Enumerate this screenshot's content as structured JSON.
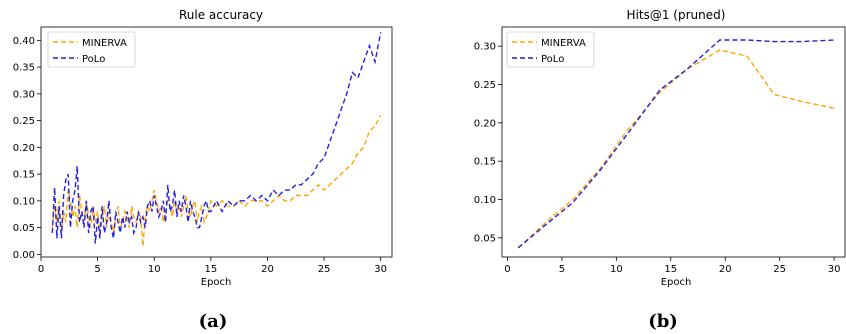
{
  "chart_data": [
    {
      "type": "line",
      "title": "Rule accuracy",
      "xlabel": "Epoch",
      "ylabel": "",
      "xlim": [
        0,
        31
      ],
      "ylim": [
        -0.005,
        0.425
      ],
      "xticks": [
        "0",
        "5",
        "10",
        "15",
        "20",
        "25",
        "30"
      ],
      "yticks": [
        "0.00",
        "0.05",
        "0.10",
        "0.15",
        "0.20",
        "0.25",
        "0.30",
        "0.35",
        "0.40"
      ],
      "legend_position": "top-left",
      "grid": false,
      "caption": "(a)",
      "series": [
        {
          "name": "MINERVA",
          "color": "#FFA500",
          "style": "dashed",
          "x": [
            1,
            1.2,
            1.4,
            1.6,
            1.8,
            2,
            2.2,
            2.4,
            2.6,
            2.8,
            3,
            3.2,
            3.4,
            3.6,
            3.8,
            4,
            4.2,
            4.4,
            4.6,
            4.8,
            5,
            5.2,
            5.4,
            5.6,
            5.8,
            6,
            6.2,
            6.4,
            6.6,
            6.8,
            7,
            7.2,
            7.4,
            7.6,
            7.8,
            8,
            8.2,
            8.4,
            8.6,
            8.8,
            9,
            9.2,
            9.4,
            9.6,
            9.8,
            10,
            10.2,
            10.4,
            10.6,
            10.8,
            11,
            11.2,
            11.4,
            11.6,
            11.8,
            12,
            12.2,
            12.4,
            12.6,
            12.8,
            13,
            13.2,
            13.4,
            13.6,
            13.8,
            14,
            14.2,
            14.4,
            14.6,
            14.8,
            15,
            15.5,
            16,
            16.5,
            17,
            17.5,
            18,
            18.5,
            19,
            19.5,
            20,
            20.5,
            21,
            21.5,
            22,
            22.5,
            23,
            23.5,
            24,
            24.5,
            25,
            25.5,
            26,
            26.5,
            27,
            27.5,
            28,
            28.5,
            29,
            29.5,
            30
          ],
          "values": [
            0.05,
            0.09,
            0.06,
            0.1,
            0.04,
            0.08,
            0.06,
            0.12,
            0.1,
            0.07,
            0.09,
            0.05,
            0.11,
            0.08,
            0.06,
            0.1,
            0.07,
            0.05,
            0.09,
            0.06,
            0.08,
            0.04,
            0.07,
            0.09,
            0.05,
            0.08,
            0.06,
            0.04,
            0.07,
            0.09,
            0.05,
            0.06,
            0.08,
            0.07,
            0.05,
            0.09,
            0.07,
            0.06,
            0.08,
            0.07,
            0.015,
            0.07,
            0.09,
            0.08,
            0.1,
            0.12,
            0.1,
            0.08,
            0.09,
            0.06,
            0.08,
            0.1,
            0.09,
            0.07,
            0.1,
            0.08,
            0.09,
            0.07,
            0.09,
            0.11,
            0.08,
            0.07,
            0.09,
            0.1,
            0.06,
            0.08,
            0.09,
            0.06,
            0.07,
            0.08,
            0.1,
            0.09,
            0.1,
            0.09,
            0.09,
            0.1,
            0.09,
            0.1,
            0.1,
            0.1,
            0.09,
            0.1,
            0.11,
            0.1,
            0.1,
            0.11,
            0.11,
            0.11,
            0.12,
            0.13,
            0.12,
            0.13,
            0.14,
            0.15,
            0.16,
            0.17,
            0.19,
            0.2,
            0.23,
            0.24,
            0.26
          ]
        },
        {
          "name": "PoLo",
          "color": "#2020DD",
          "style": "dashed",
          "x": [
            1,
            1.2,
            1.4,
            1.6,
            1.8,
            2,
            2.2,
            2.4,
            2.6,
            2.8,
            3,
            3.2,
            3.4,
            3.6,
            3.8,
            4,
            4.2,
            4.4,
            4.6,
            4.8,
            5,
            5.2,
            5.4,
            5.6,
            5.8,
            6,
            6.2,
            6.4,
            6.6,
            6.8,
            7,
            7.2,
            7.4,
            7.6,
            7.8,
            8,
            8.2,
            8.4,
            8.6,
            8.8,
            9,
            9.2,
            9.4,
            9.6,
            9.8,
            10,
            10.2,
            10.4,
            10.6,
            10.8,
            11,
            11.2,
            11.4,
            11.6,
            11.8,
            12,
            12.2,
            12.4,
            12.6,
            12.8,
            13,
            13.2,
            13.4,
            13.6,
            13.8,
            14,
            14.2,
            14.4,
            14.6,
            14.8,
            15,
            15.5,
            16,
            16.5,
            17,
            17.5,
            18,
            18.5,
            19,
            19.5,
            20,
            20.5,
            21,
            21.5,
            22,
            22.5,
            23,
            23.5,
            24,
            24.5,
            25,
            25.5,
            26,
            26.5,
            27,
            27.5,
            28,
            28.5,
            29,
            29.5,
            30
          ],
          "values": [
            0.04,
            0.125,
            0.03,
            0.09,
            0.03,
            0.11,
            0.14,
            0.15,
            0.05,
            0.1,
            0.12,
            0.165,
            0.06,
            0.08,
            0.05,
            0.1,
            0.04,
            0.08,
            0.09,
            0.02,
            0.07,
            0.03,
            0.09,
            0.04,
            0.06,
            0.1,
            0.05,
            0.03,
            0.08,
            0.06,
            0.04,
            0.07,
            0.05,
            0.08,
            0.06,
            0.07,
            0.04,
            0.05,
            0.08,
            0.06,
            0.07,
            0.05,
            0.09,
            0.1,
            0.08,
            0.11,
            0.09,
            0.07,
            0.08,
            0.1,
            0.06,
            0.13,
            0.08,
            0.09,
            0.12,
            0.07,
            0.1,
            0.08,
            0.11,
            0.09,
            0.06,
            0.1,
            0.08,
            0.07,
            0.05,
            0.05,
            0.07,
            0.09,
            0.1,
            0.08,
            0.08,
            0.1,
            0.08,
            0.1,
            0.09,
            0.1,
            0.1,
            0.11,
            0.1,
            0.11,
            0.1,
            0.12,
            0.11,
            0.12,
            0.12,
            0.13,
            0.13,
            0.14,
            0.15,
            0.17,
            0.18,
            0.21,
            0.24,
            0.27,
            0.3,
            0.34,
            0.33,
            0.36,
            0.39,
            0.36,
            0.415
          ]
        }
      ]
    },
    {
      "type": "line",
      "title": "Hits@1 (pruned)",
      "xlabel": "Epoch",
      "ylabel": "",
      "xlim": [
        -0.5,
        31
      ],
      "ylim": [
        0.025,
        0.325
      ],
      "xticks": [
        "0",
        "5",
        "10",
        "15",
        "20",
        "25",
        "30"
      ],
      "yticks": [
        "0.05",
        "0.10",
        "0.15",
        "0.20",
        "0.25",
        "0.30"
      ],
      "legend_position": "top-left",
      "grid": false,
      "caption": "(b)",
      "series": [
        {
          "name": "MINERVA",
          "color": "#FFA500",
          "style": "dashed",
          "x": [
            1,
            3.5,
            6,
            8.5,
            11,
            14,
            16.5,
            19.5,
            22,
            24.5,
            27,
            30
          ],
          "values": [
            0.037,
            0.07,
            0.1,
            0.14,
            0.19,
            0.24,
            0.27,
            0.295,
            0.287,
            0.237,
            0.228,
            0.219
          ]
        },
        {
          "name": "PoLo",
          "color": "#2020DD",
          "style": "dashed",
          "x": [
            1,
            3.5,
            6,
            8.5,
            11,
            14,
            16.5,
            19.5,
            22,
            24.5,
            27,
            30
          ],
          "values": [
            0.037,
            0.067,
            0.096,
            0.138,
            0.185,
            0.243,
            0.27,
            0.308,
            0.308,
            0.306,
            0.306,
            0.308
          ]
        }
      ]
    }
  ]
}
